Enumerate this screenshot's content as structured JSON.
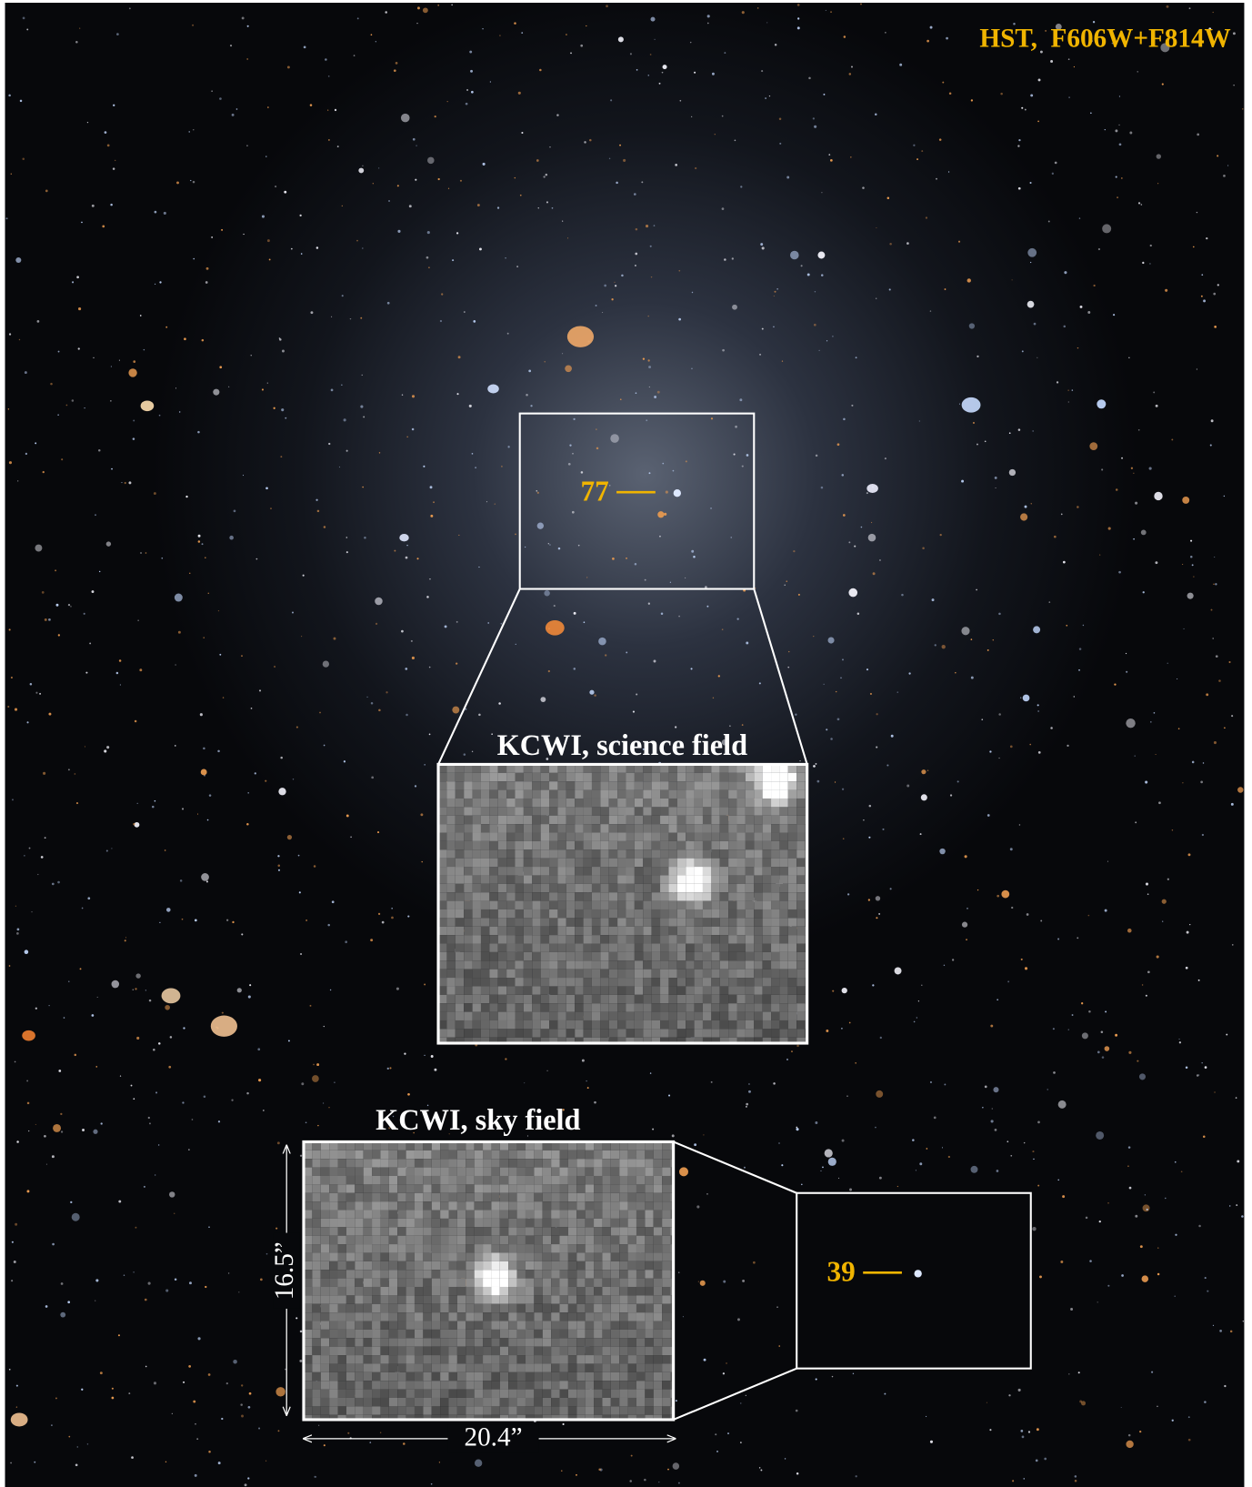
{
  "header": {
    "title": "HST,  F606W+F814W"
  },
  "markers": [
    {
      "label": "77"
    },
    {
      "label": "39"
    }
  ],
  "insets": [
    {
      "title": "KCWI, science field"
    },
    {
      "title": "KCWI, sky field"
    }
  ],
  "scale": {
    "height": "16.5”",
    "width": "20.4”"
  }
}
